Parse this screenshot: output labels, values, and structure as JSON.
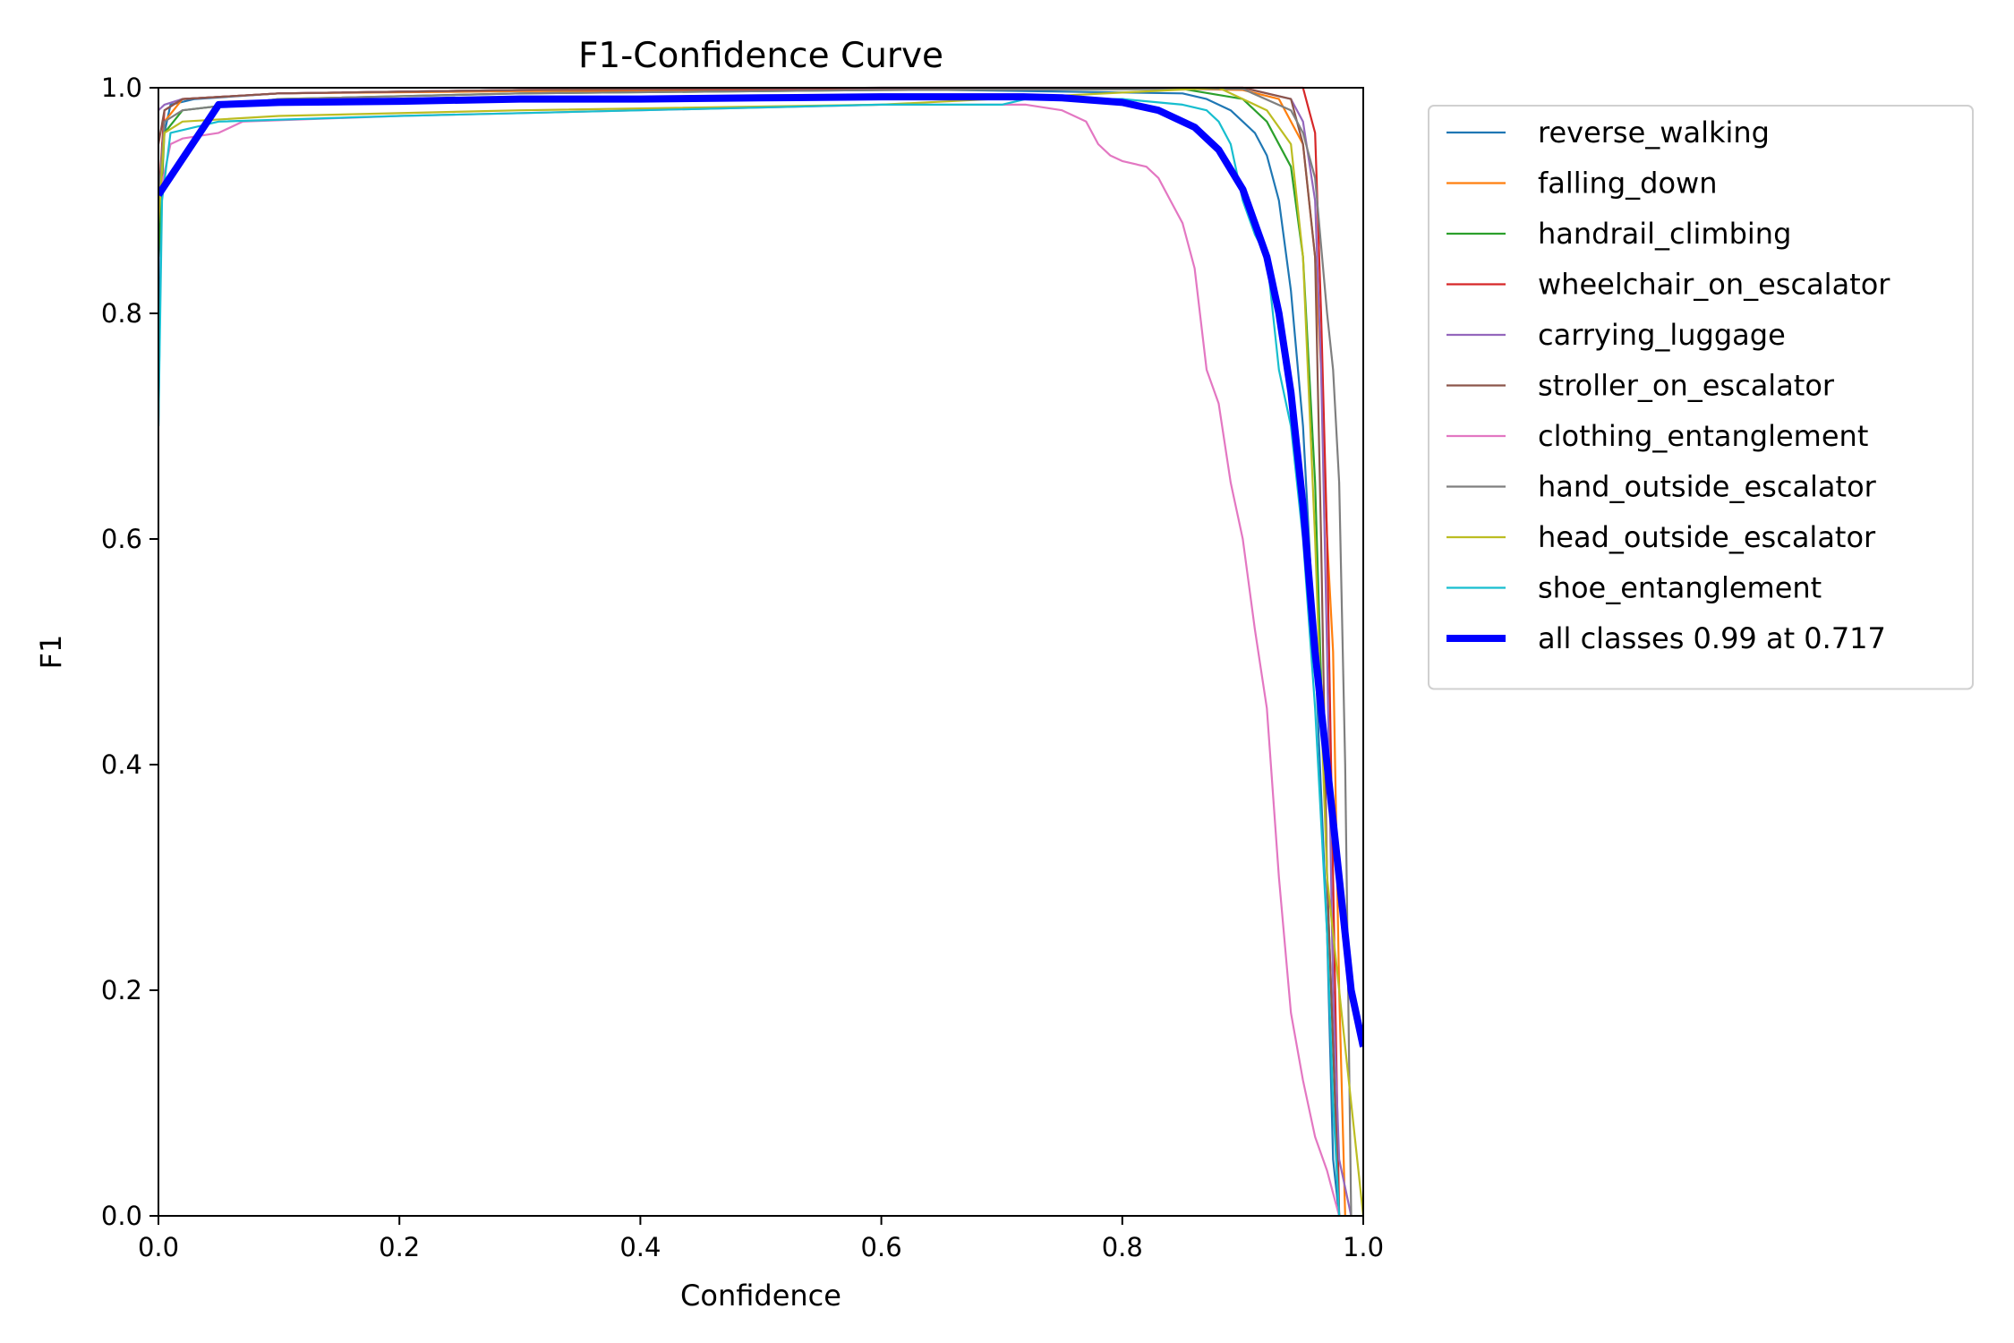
{
  "chart_data": {
    "type": "line",
    "title": "F1-Confidence Curve",
    "xlabel": "Confidence",
    "ylabel": "F1",
    "xlim": [
      0,
      1
    ],
    "ylim": [
      0,
      1
    ],
    "xticks": [
      "0.0",
      "0.2",
      "0.4",
      "0.6",
      "0.8",
      "1.0"
    ],
    "yticks": [
      "0.0",
      "0.2",
      "0.4",
      "0.6",
      "0.8",
      "1.0"
    ],
    "grid": false,
    "legend_position": "outside-right",
    "series": [
      {
        "name": "reverse_walking",
        "color": "#1f77b4",
        "x": [
          0.0,
          0.003,
          0.01,
          0.03,
          0.1,
          0.3,
          0.6,
          0.85,
          0.87,
          0.89,
          0.91,
          0.92,
          0.93,
          0.94,
          0.95,
          0.96,
          0.97,
          0.975,
          0.98
        ],
        "y": [
          0.7,
          0.95,
          0.985,
          0.99,
          0.995,
          0.998,
          0.999,
          0.995,
          0.99,
          0.98,
          0.96,
          0.94,
          0.9,
          0.82,
          0.7,
          0.5,
          0.25,
          0.05,
          0.0
        ]
      },
      {
        "name": "falling_down",
        "color": "#ff7f0e",
        "x": [
          0.0,
          0.005,
          0.02,
          0.1,
          0.3,
          0.6,
          0.85,
          0.9,
          0.93,
          0.95,
          0.96,
          0.965,
          0.97,
          0.975,
          0.98,
          0.985
        ],
        "y": [
          0.9,
          0.97,
          0.99,
          0.995,
          0.997,
          0.998,
          0.999,
          0.998,
          0.99,
          0.95,
          0.85,
          0.75,
          0.6,
          0.5,
          0.2,
          0.0
        ]
      },
      {
        "name": "handrail_climbing",
        "color": "#2ca02c",
        "x": [
          0.0,
          0.005,
          0.02,
          0.1,
          0.3,
          0.6,
          0.85,
          0.9,
          0.92,
          0.94,
          0.95,
          0.96,
          0.97,
          0.98
        ],
        "y": [
          0.85,
          0.96,
          0.98,
          0.99,
          0.995,
          0.998,
          0.999,
          0.99,
          0.97,
          0.93,
          0.85,
          0.65,
          0.3,
          0.0
        ]
      },
      {
        "name": "wheelchair_on_escalator",
        "color": "#d62728",
        "x": [
          0.0,
          0.005,
          0.02,
          0.1,
          0.3,
          0.6,
          0.9,
          0.95,
          0.955,
          0.96,
          0.965,
          0.97,
          0.975,
          0.98
        ],
        "y": [
          0.9,
          0.98,
          0.99,
          0.995,
          0.998,
          0.999,
          1.0,
          1.0,
          0.98,
          0.96,
          0.8,
          0.6,
          0.3,
          0.0
        ]
      },
      {
        "name": "carrying_luggage",
        "color": "#9467bd",
        "x": [
          0.0,
          0.005,
          0.02,
          0.1,
          0.3,
          0.6,
          0.9,
          0.94,
          0.95,
          0.96,
          0.965,
          0.97,
          0.975,
          0.98,
          0.99
        ],
        "y": [
          0.98,
          0.985,
          0.99,
          0.995,
          0.998,
          1.0,
          1.0,
          0.99,
          0.97,
          0.9,
          0.75,
          0.5,
          0.2,
          0.05,
          0.0
        ]
      },
      {
        "name": "stroller_on_escalator",
        "color": "#8c564b",
        "x": [
          0.0,
          0.005,
          0.02,
          0.1,
          0.3,
          0.6,
          0.9,
          0.94,
          0.95,
          0.96,
          0.965,
          0.97,
          0.98
        ],
        "y": [
          0.95,
          0.98,
          0.99,
          0.995,
          0.998,
          1.0,
          1.0,
          0.99,
          0.95,
          0.85,
          0.6,
          0.3,
          0.0
        ]
      },
      {
        "name": "clothing_entanglement",
        "color": "#e377c2",
        "x": [
          0.0,
          0.01,
          0.02,
          0.05,
          0.07,
          0.2,
          0.4,
          0.6,
          0.72,
          0.75,
          0.77,
          0.78,
          0.79,
          0.8,
          0.82,
          0.83,
          0.84,
          0.85,
          0.86,
          0.87,
          0.88,
          0.89,
          0.9,
          0.91,
          0.92,
          0.93,
          0.94,
          0.95,
          0.96,
          0.97,
          0.975,
          0.98
        ],
        "y": [
          0.9,
          0.95,
          0.955,
          0.96,
          0.97,
          0.975,
          0.98,
          0.985,
          0.985,
          0.98,
          0.97,
          0.95,
          0.94,
          0.935,
          0.93,
          0.92,
          0.9,
          0.88,
          0.84,
          0.75,
          0.72,
          0.65,
          0.6,
          0.52,
          0.45,
          0.3,
          0.18,
          0.12,
          0.07,
          0.04,
          0.02,
          0.0
        ]
      },
      {
        "name": "hand_outside_escalator",
        "color": "#7f7f7f",
        "x": [
          0.0,
          0.005,
          0.02,
          0.1,
          0.3,
          0.6,
          0.9,
          0.94,
          0.95,
          0.96,
          0.97,
          0.975,
          0.98,
          0.985,
          0.99
        ],
        "y": [
          0.9,
          0.97,
          0.98,
          0.99,
          0.995,
          0.998,
          0.999,
          0.98,
          0.96,
          0.92,
          0.8,
          0.75,
          0.65,
          0.4,
          0.0
        ]
      },
      {
        "name": "head_outside_escalator",
        "color": "#bcbd22",
        "x": [
          0.0,
          0.005,
          0.02,
          0.1,
          0.3,
          0.6,
          0.88,
          0.9,
          0.92,
          0.94,
          0.95,
          0.96,
          0.97,
          0.98,
          0.99,
          1.0
        ],
        "y": [
          0.88,
          0.96,
          0.97,
          0.975,
          0.98,
          0.985,
          1.0,
          0.99,
          0.98,
          0.95,
          0.85,
          0.6,
          0.3,
          0.2,
          0.1,
          0.0
        ]
      },
      {
        "name": "shoe_entanglement",
        "color": "#17becf",
        "x": [
          0.0,
          0.003,
          0.01,
          0.05,
          0.2,
          0.4,
          0.6,
          0.7,
          0.72,
          0.8,
          0.85,
          0.87,
          0.88,
          0.89,
          0.9,
          0.91,
          0.92,
          0.93,
          0.94,
          0.95,
          0.96,
          0.97,
          0.975,
          0.98
        ],
        "y": [
          0.7,
          0.9,
          0.96,
          0.97,
          0.975,
          0.98,
          0.985,
          0.985,
          0.99,
          0.99,
          0.985,
          0.98,
          0.97,
          0.95,
          0.9,
          0.87,
          0.85,
          0.75,
          0.7,
          0.6,
          0.45,
          0.25,
          0.1,
          0.0
        ]
      },
      {
        "name": "all classes 0.99 at 0.717",
        "color": "#0000ff",
        "emphasis": true,
        "x": [
          0.0,
          0.05,
          0.1,
          0.2,
          0.3,
          0.4,
          0.5,
          0.6,
          0.7,
          0.717,
          0.75,
          0.8,
          0.83,
          0.86,
          0.88,
          0.9,
          0.92,
          0.93,
          0.94,
          0.95,
          0.96,
          0.97,
          0.98,
          0.99,
          1.0
        ],
        "y": [
          0.905,
          0.985,
          0.987,
          0.988,
          0.99,
          0.99,
          0.991,
          0.992,
          0.992,
          0.992,
          0.991,
          0.987,
          0.98,
          0.965,
          0.945,
          0.91,
          0.85,
          0.8,
          0.73,
          0.63,
          0.5,
          0.4,
          0.3,
          0.2,
          0.15
        ]
      }
    ]
  }
}
